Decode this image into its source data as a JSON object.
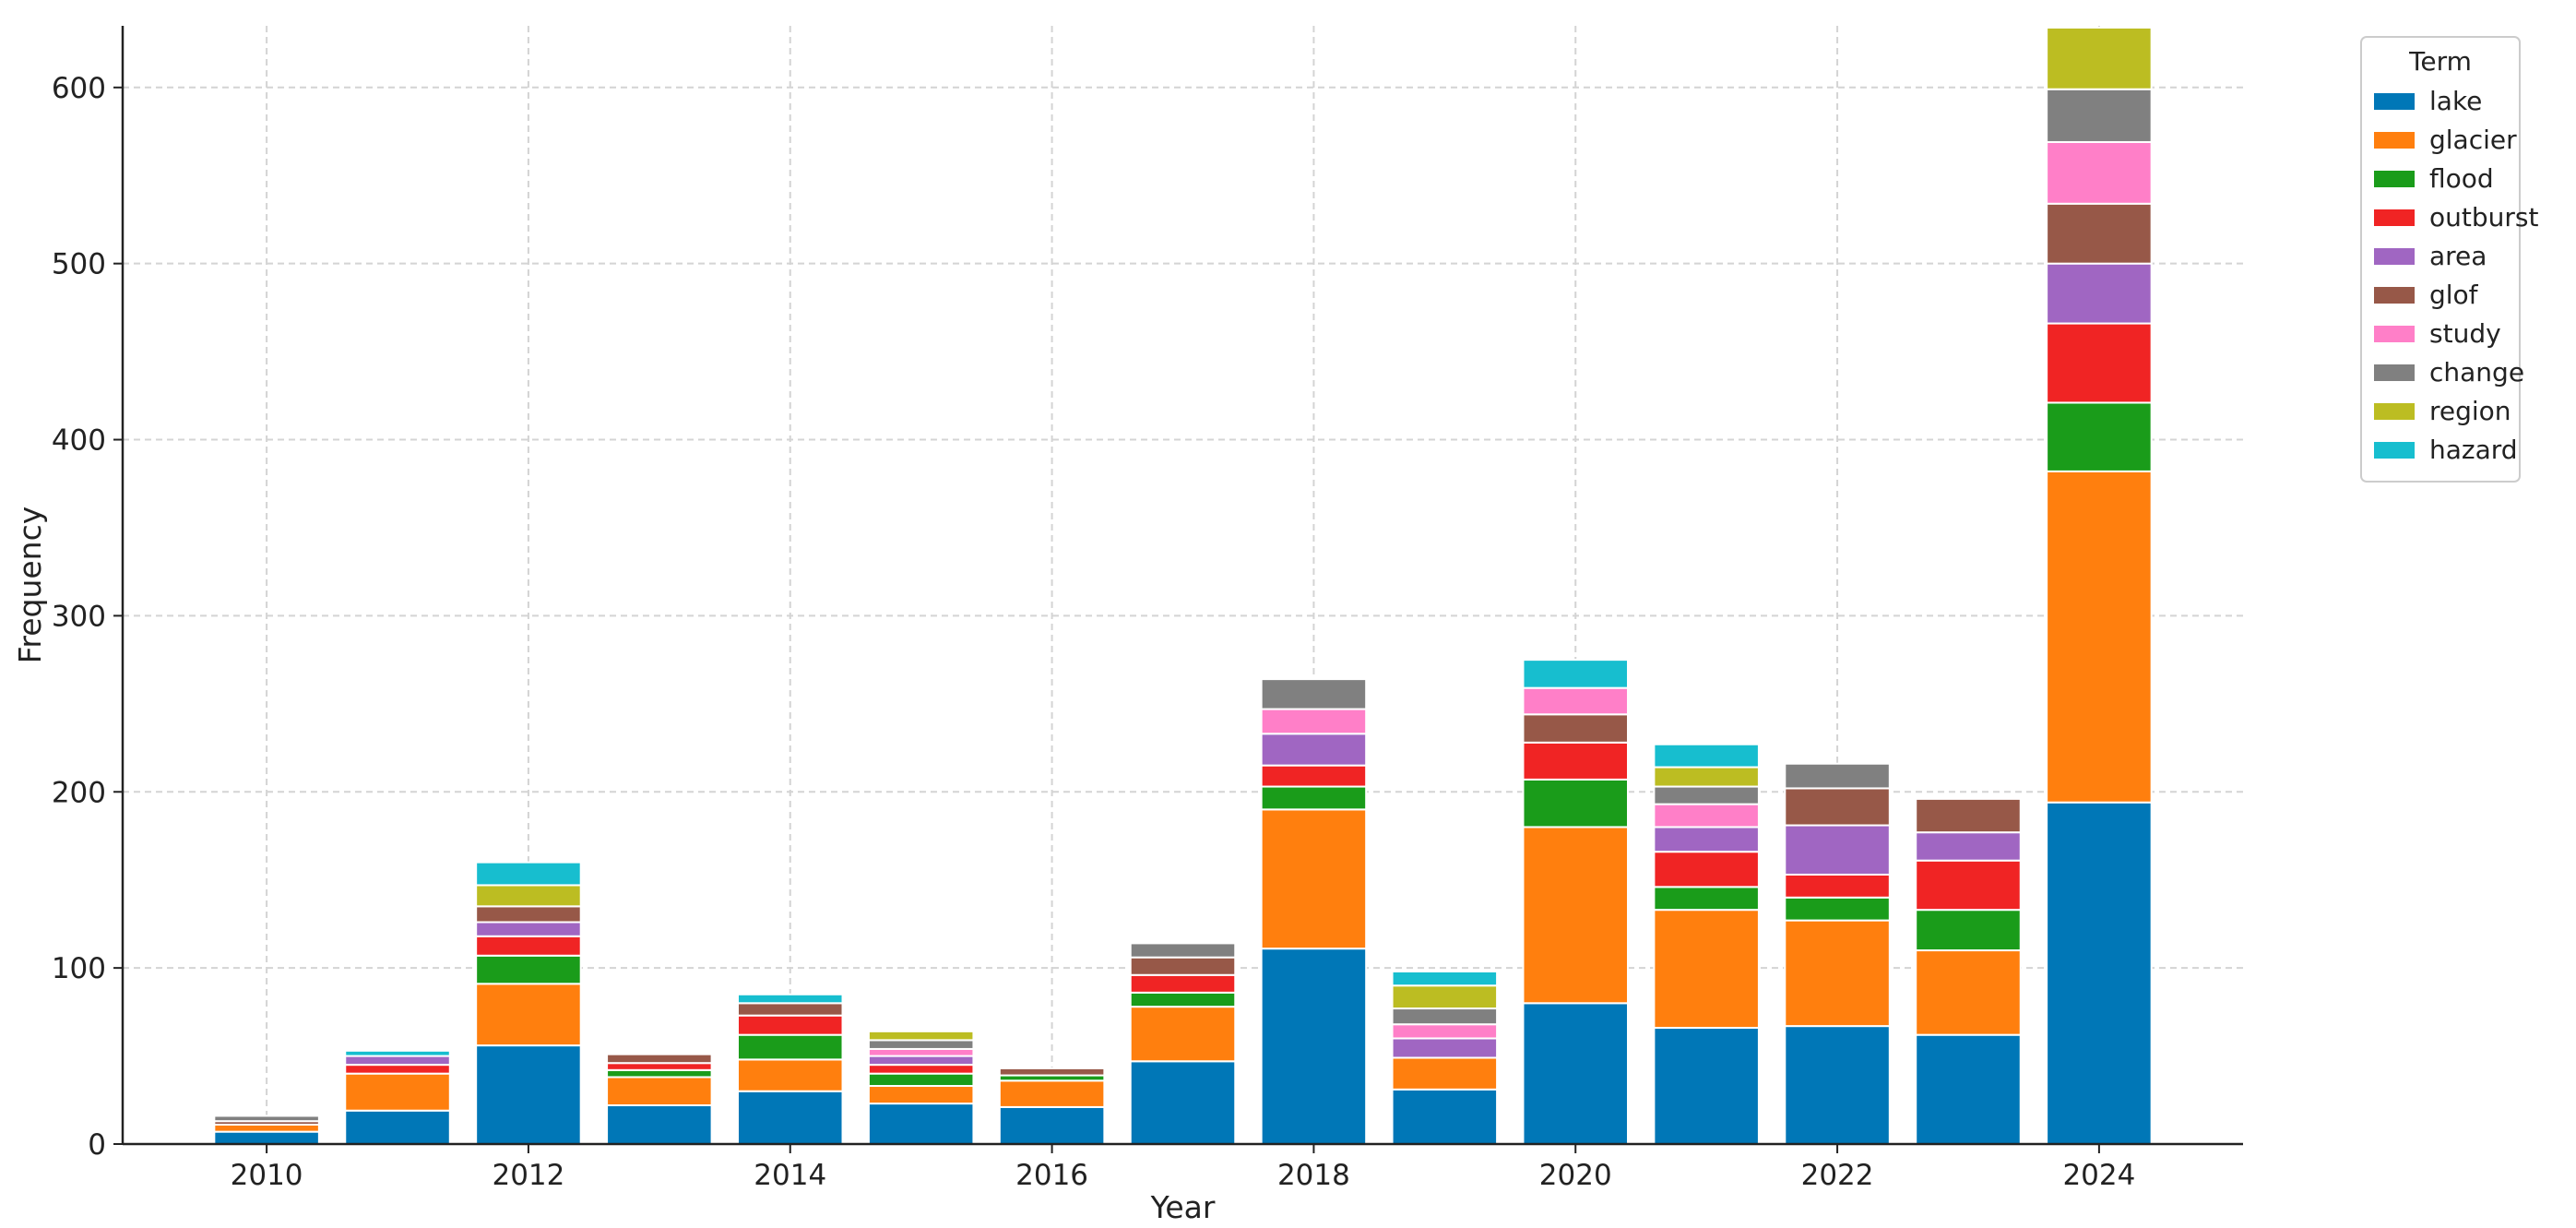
{
  "chart_data": {
    "type": "bar",
    "stacked": true,
    "title": "",
    "xlabel": "Year",
    "ylabel": "Frequency",
    "ylim": [
      0,
      635
    ],
    "xlim": [
      2008.9,
      2025.1
    ],
    "yticks": [
      0,
      100,
      200,
      300,
      400,
      500,
      600
    ],
    "xticks": [
      2010,
      2012,
      2014,
      2016,
      2018,
      2020,
      2022,
      2024
    ],
    "grid": true,
    "legend_title": "Term",
    "legend_position": "top-right outside",
    "categories": [
      2010,
      2011,
      2012,
      2013,
      2014,
      2015,
      2016,
      2017,
      2018,
      2019,
      2020,
      2021,
      2022,
      2023,
      2024
    ],
    "series": [
      {
        "name": "lake",
        "color": "#0077b7",
        "values": [
          7,
          19,
          56,
          22,
          30,
          23,
          21,
          47,
          111,
          31,
          80,
          66,
          67,
          62,
          194
        ]
      },
      {
        "name": "glacier",
        "color": "#ff7f0e",
        "values": [
          4,
          21,
          35,
          16,
          18,
          10,
          15,
          31,
          79,
          18,
          100,
          67,
          60,
          48,
          188
        ]
      },
      {
        "name": "flood",
        "color": "#1a9c1a",
        "values": [
          0,
          0,
          16,
          4,
          14,
          7,
          3,
          8,
          13,
          0,
          27,
          13,
          13,
          23,
          39
        ]
      },
      {
        "name": "outburst",
        "color": "#f02424",
        "values": [
          0,
          5,
          11,
          4,
          11,
          5,
          0,
          10,
          12,
          0,
          21,
          20,
          13,
          28,
          45
        ]
      },
      {
        "name": "area",
        "color": "#a066c2",
        "values": [
          0,
          5,
          8,
          0,
          0,
          5,
          0,
          0,
          18,
          11,
          0,
          14,
          28,
          16,
          34
        ]
      },
      {
        "name": "glof",
        "color": "#975848",
        "values": [
          2,
          0,
          9,
          5,
          7,
          0,
          4,
          10,
          0,
          0,
          16,
          0,
          21,
          19,
          34
        ]
      },
      {
        "name": "study",
        "color": "#ff7fc8",
        "values": [
          0,
          0,
          0,
          0,
          0,
          4,
          0,
          0,
          14,
          8,
          15,
          13,
          0,
          0,
          35
        ]
      },
      {
        "name": "change",
        "color": "#808080",
        "values": [
          3,
          0,
          0,
          0,
          0,
          5,
          0,
          8,
          17,
          9,
          0,
          10,
          14,
          0,
          30
        ]
      },
      {
        "name": "region",
        "color": "#bcbd22",
        "values": [
          0,
          0,
          12,
          0,
          0,
          5,
          0,
          0,
          0,
          13,
          0,
          11,
          0,
          0,
          35
        ]
      },
      {
        "name": "hazard",
        "color": "#17becf",
        "values": [
          0,
          3,
          13,
          0,
          5,
          0,
          0,
          0,
          0,
          8,
          16,
          13,
          0,
          0,
          0
        ]
      }
    ]
  }
}
